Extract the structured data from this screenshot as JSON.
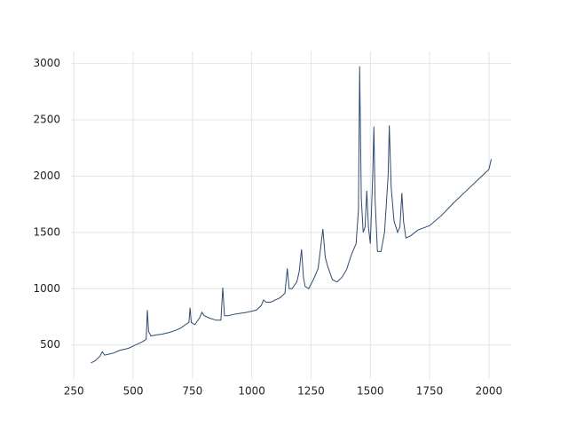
{
  "chart_data": {
    "type": "line",
    "color": "#2f4b6e",
    "grid": true,
    "x": [
      322,
      340,
      360,
      370,
      380,
      400,
      420,
      440,
      460,
      480,
      500,
      520,
      540,
      555,
      560,
      565,
      575,
      600,
      620,
      650,
      680,
      700,
      720,
      735,
      740,
      745,
      760,
      780,
      790,
      800,
      820,
      850,
      870,
      878,
      885,
      900,
      920,
      950,
      980,
      1000,
      1020,
      1040,
      1050,
      1060,
      1080,
      1100,
      1120,
      1140,
      1150,
      1158,
      1170,
      1190,
      1200,
      1210,
      1218,
      1225,
      1240,
      1260,
      1280,
      1300,
      1310,
      1320,
      1340,
      1360,
      1380,
      1400,
      1420,
      1440,
      1450,
      1455,
      1462,
      1470,
      1478,
      1485,
      1492,
      1500,
      1510,
      1515,
      1520,
      1530,
      1545,
      1560,
      1575,
      1580,
      1588,
      1600,
      1615,
      1625,
      1633,
      1640,
      1650,
      1670,
      1700,
      1750,
      1800,
      1850,
      1900,
      1950,
      2000,
      2010
    ],
    "values": [
      340,
      360,
      400,
      440,
      410,
      420,
      430,
      450,
      460,
      470,
      490,
      510,
      530,
      550,
      810,
      620,
      580,
      590,
      595,
      610,
      630,
      650,
      680,
      700,
      830,
      700,
      680,
      740,
      790,
      760,
      740,
      720,
      720,
      1010,
      760,
      760,
      770,
      780,
      790,
      800,
      810,
      850,
      900,
      880,
      880,
      900,
      920,
      960,
      1180,
      1000,
      1000,
      1060,
      1150,
      1350,
      1100,
      1020,
      1000,
      1080,
      1180,
      1530,
      1280,
      1200,
      1080,
      1060,
      1100,
      1170,
      1300,
      1400,
      1700,
      2975,
      1800,
      1500,
      1550,
      1870,
      1550,
      1400,
      2000,
      2440,
      1800,
      1330,
      1330,
      1500,
      2000,
      2450,
      1900,
      1600,
      1500,
      1550,
      1850,
      1600,
      1450,
      1470,
      1520,
      1560,
      1650,
      1760,
      1860,
      1960,
      2060,
      2150
    ],
    "xlim": [
      238,
      2094
    ],
    "ylim": [
      198,
      3107
    ],
    "xticks": [
      250,
      500,
      750,
      1000,
      1250,
      1500,
      1750,
      2000
    ],
    "yticks": [
      500,
      1000,
      1500,
      2000,
      2500,
      3000
    ]
  }
}
